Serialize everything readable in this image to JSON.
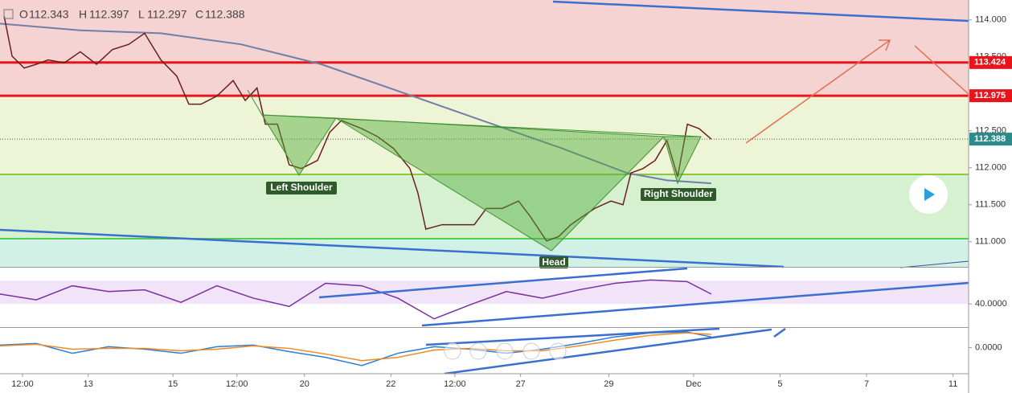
{
  "header": {
    "ohlc": [
      {
        "label": "O",
        "value": 112.343
      },
      {
        "label": "H",
        "value": 112.397
      },
      {
        "label": "L",
        "value": 112.297
      },
      {
        "label": "C",
        "value": 112.388
      }
    ]
  },
  "chart_data": [
    {
      "type": "line",
      "xlim": [
        0,
        280
      ],
      "xticks": [
        {
          "value": 6.5,
          "label": "12:00"
        },
        {
          "value": 25.5,
          "label": "13"
        },
        {
          "value": 50,
          "label": "15"
        },
        {
          "value": 68.5,
          "label": "12:00"
        },
        {
          "value": 88,
          "label": "20"
        },
        {
          "value": 113,
          "label": "22"
        },
        {
          "value": 131.5,
          "label": "12:00"
        },
        {
          "value": 150.5,
          "label": "27"
        },
        {
          "value": 176,
          "label": "29"
        },
        {
          "value": 200.5,
          "label": "Dec"
        },
        {
          "value": 225.5,
          "label": "5"
        },
        {
          "value": 250.5,
          "label": "7"
        },
        {
          "value": 275.5,
          "label": "11"
        }
      ],
      "ylim": [
        110.66,
        114.27
      ],
      "yticks": [
        {
          "value": 111,
          "label": "111.000"
        },
        {
          "value": 111.5,
          "label": "111.500"
        },
        {
          "value": 112,
          "label": "112.000"
        },
        {
          "value": 112.5,
          "label": "112.500"
        },
        {
          "value": 113.5,
          "label": "113.500"
        },
        {
          "value": 114,
          "label": "114.000"
        }
      ],
      "x": [
        1.2,
        3.5,
        7.0,
        10.5,
        13.9,
        18.6,
        23.2,
        27.9,
        32.5,
        37.2,
        41.8,
        46.5,
        51.1,
        54.6,
        58.1,
        62.7,
        67.4,
        70.9,
        74.3,
        76.7,
        80.2,
        83.6,
        87.1,
        91.8,
        95.3,
        98.7,
        104.6,
        109.2,
        113.8,
        118.5,
        120.8,
        123.1,
        127.8,
        132.4,
        137.1,
        140.6,
        145.2,
        149.9,
        153.3,
        158.0,
        161.5,
        165.0,
        168.4,
        171.9,
        176.6,
        180.1,
        182.4,
        185.9,
        189.4,
        192.8,
        195.9,
        198.7,
        202.1,
        205.6
      ],
      "series": [
        {
          "color": "#6b1f1f",
          "values": [
            114.05,
            113.51,
            113.35,
            113.4,
            113.46,
            113.42,
            113.57,
            113.4,
            113.6,
            113.67,
            113.82,
            113.46,
            113.24,
            112.86,
            112.86,
            112.97,
            113.18,
            112.91,
            113.08,
            112.59,
            112.59,
            112.04,
            111.99,
            112.1,
            112.48,
            112.64,
            112.53,
            112.42,
            112.26,
            111.99,
            111.66,
            111.17,
            111.23,
            111.23,
            111.23,
            111.45,
            111.45,
            111.55,
            111.34,
            111.01,
            111.07,
            111.23,
            111.34,
            111.45,
            111.55,
            111.5,
            111.93,
            111.99,
            112.1,
            112.37,
            111.88,
            112.59,
            112.53,
            112.388
          ]
        }
      ],
      "ma": {
        "color": "#6f7fa8",
        "x": [
          0,
          23.2,
          46.5,
          69.7,
          92.9,
          116.2,
          139.4,
          162.6,
          181.2,
          192.8,
          205.6
        ],
        "values": [
          113.95,
          113.86,
          113.82,
          113.67,
          113.4,
          113.02,
          112.64,
          112.26,
          111.93,
          111.83,
          111.79
        ]
      },
      "levels": [
        {
          "value": 113.424,
          "color": "#e8141b"
        },
        {
          "value": 112.975,
          "color": "#e8141b"
        },
        {
          "value": 111.91,
          "color": "#8cc63e"
        },
        {
          "value": 111.04,
          "color": "#4fcf4f"
        }
      ],
      "price_labels": [
        {
          "value": 113.424,
          "color": "#e8141b"
        },
        {
          "value": 112.975,
          "color": "#e8141b"
        },
        {
          "value": 112.388,
          "color": "#2c8a8a"
        }
      ],
      "annotations": [
        "Left Shoulder",
        "Head",
        "Right Shoulder"
      ]
    },
    {
      "type": "line",
      "xlim": [
        0,
        280
      ],
      "ylim": [
        10,
        87
      ],
      "yticks": [
        {
          "value": 40,
          "label": "40.0000"
        }
      ],
      "x": [
        0,
        10.5,
        20.9,
        31.4,
        41.8,
        52.3,
        62.7,
        73.2,
        83.6,
        94.1,
        104.6,
        115,
        125.5,
        135.9,
        146.4,
        156.8,
        167.3,
        177.7,
        188.2,
        198.6,
        205.6
      ],
      "series": [
        {
          "color": "#7b2f9e",
          "values": [
            52.8,
            45.3,
            63.5,
            56,
            58.2,
            42.1,
            63.5,
            47.5,
            36.8,
            66.7,
            63.5,
            47.5,
            20.7,
            38.9,
            56,
            47.5,
            58.2,
            66.7,
            71,
            68.9,
            52.8
          ]
        }
      ]
    },
    {
      "type": "line",
      "xlim": [
        0,
        280
      ],
      "ylim": [
        -0.32,
        0.24
      ],
      "yticks": [
        {
          "value": 0,
          "label": "0.0000"
        }
      ],
      "x": [
        0,
        10.5,
        20.9,
        31.4,
        41.8,
        52.3,
        62.7,
        73.2,
        83.6,
        94.1,
        104.6,
        115,
        125.5,
        135.9,
        146.4,
        156.8,
        167.3,
        177.7,
        188.2,
        198.6,
        205.6
      ],
      "series": [
        {
          "color": "#2a7fd4",
          "values": [
            0.03,
            0.05,
            -0.07,
            0.01,
            -0.02,
            -0.07,
            0.01,
            0.03,
            -0.05,
            -0.12,
            -0.22,
            -0.07,
            0.01,
            -0.02,
            -0.07,
            -0.02,
            0.05,
            0.13,
            0.18,
            0.19,
            0.13
          ]
        },
        {
          "color": "#f08a24",
          "values": [
            0.02,
            0.04,
            -0.02,
            -0.01,
            -0.01,
            -0.04,
            -0.02,
            0.02,
            -0.01,
            -0.08,
            -0.16,
            -0.12,
            -0.03,
            -0.01,
            -0.04,
            -0.04,
            0.02,
            0.09,
            0.15,
            0.18,
            0.16
          ]
        }
      ]
    }
  ]
}
